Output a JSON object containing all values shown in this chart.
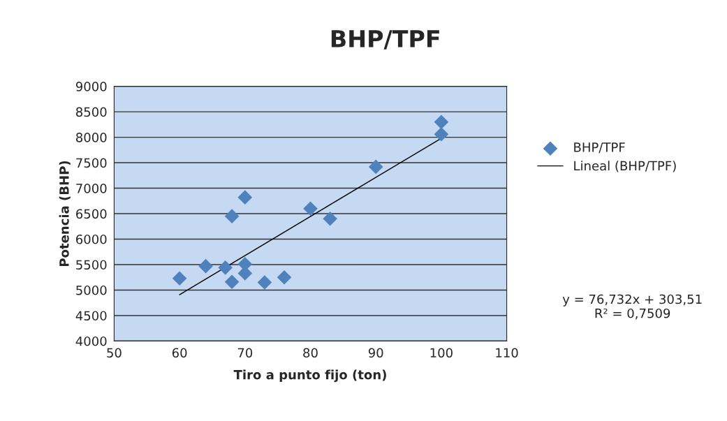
{
  "chart_data": {
    "type": "scatter",
    "title": "BHP/TPF",
    "xlabel": "Tiro a punto fijo (ton)",
    "ylabel": "Potencia (BHP)",
    "series": [
      {
        "name": "BHP/TPF",
        "type": "scatter",
        "color": "#4f81bd",
        "marker": "diamond",
        "x": [
          60,
          64,
          67,
          68,
          68,
          70,
          70,
          70,
          73,
          76,
          80,
          83,
          90,
          100,
          100
        ],
        "values": [
          5230,
          5470,
          5440,
          6450,
          5160,
          6820,
          5510,
          5330,
          5150,
          5250,
          6600,
          6400,
          7420,
          8300,
          8060
        ]
      },
      {
        "name": "Lineal (BHP/TPF)",
        "type": "line",
        "color": "#000000",
        "marker": "none",
        "x": [
          60,
          100
        ],
        "values": [
          4910,
          7980
        ]
      }
    ],
    "xlim": [
      50,
      110
    ],
    "xticks": [
      50,
      60,
      70,
      80,
      90,
      100,
      110
    ],
    "ylim": [
      4000,
      9000
    ],
    "yticks": [
      4000,
      4500,
      5000,
      5500,
      6000,
      6500,
      7000,
      7500,
      8000,
      8500,
      9000
    ],
    "grid": "y",
    "legend": "right",
    "annotations": [
      "y = 76,732x + 303,51\nR² = 0,7509"
    ]
  }
}
